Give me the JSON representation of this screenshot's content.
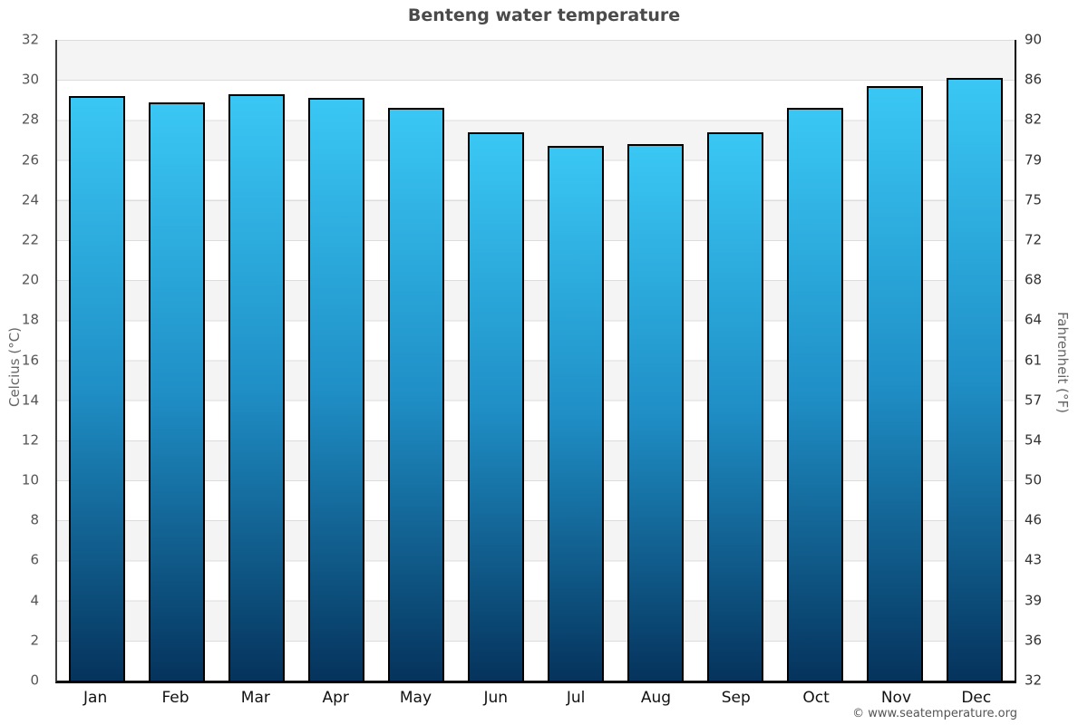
{
  "page": {
    "title": "Benteng water temperature"
  },
  "chart_data": {
    "type": "bar",
    "title": "Benteng water temperature",
    "categories": [
      "Jan",
      "Feb",
      "Mar",
      "Apr",
      "May",
      "Jun",
      "Jul",
      "Aug",
      "Sep",
      "Oct",
      "Nov",
      "Dec"
    ],
    "values": [
      29.2,
      28.9,
      29.3,
      29.1,
      28.6,
      27.4,
      26.7,
      26.8,
      27.4,
      28.6,
      29.7,
      30.1
    ],
    "unit": "°C",
    "ylabel_left": "Celcius (°C)",
    "ylabel_right": "Fahrenheit (°F)",
    "ylim": [
      0,
      32
    ],
    "celsius_ticks": [
      32,
      30,
      28,
      26,
      24,
      22,
      20,
      18,
      16,
      14,
      12,
      10,
      8,
      6,
      4,
      2,
      0
    ],
    "fahrenheit_ticks": [
      90,
      86,
      82,
      79,
      75,
      72,
      68,
      64,
      61,
      57,
      54,
      50,
      46,
      43,
      39,
      36,
      32
    ],
    "grid": "alternating gray/white horizontal bands every 2°C with thin gridlines",
    "legend": "none"
  },
  "footer": {
    "copyright": "© www.seatemperature.org"
  },
  "colors": {
    "bar_top": "#3ac7f4",
    "bar_mid": "#1f8fc6",
    "bar_bottom": "#05335c",
    "bar_border": "#000000",
    "band_gray": "#f4f4f4",
    "grid_line": "#dcdcdc",
    "title_text": "#4a4a4a",
    "tick_text": "#555555",
    "month_text": "#111111",
    "axis_label_text": "#666666",
    "copyright_text": "#555555"
  }
}
